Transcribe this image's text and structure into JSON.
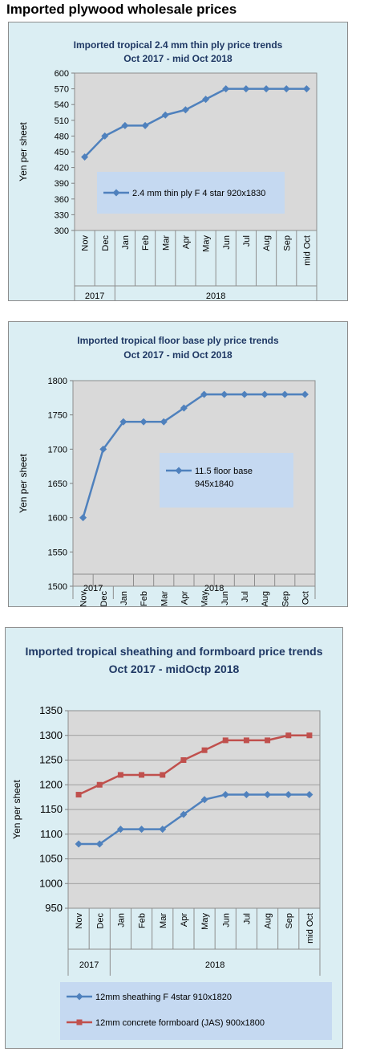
{
  "page": {
    "title": "Imported plywood wholesale prices"
  },
  "colors": {
    "panel_bg": "#dbeef3",
    "plot_bg": "#d9d9d9",
    "legend_bg": "#c5d9f1",
    "blue_series": "#4f81bd",
    "red_series": "#c0504d",
    "title_text": "#1f3864"
  },
  "chart_data": [
    {
      "type": "line",
      "title": "Imported tropical 2.4 mm thin ply price trends",
      "subtitle": "Oct 2017 -  mid  Oct 2018",
      "ylabel": "Yen per sheet",
      "xlabel": "",
      "categories": [
        "Nov",
        "Dec",
        "Jan",
        "Feb",
        "Mar",
        "Apr",
        "May",
        "Jun",
        "Jul",
        "Aug",
        "Sep",
        "mid Oct"
      ],
      "year_groups": [
        {
          "label": "2017",
          "span": 2
        },
        {
          "label": "2018",
          "span": 10
        }
      ],
      "ylim": [
        300,
        600
      ],
      "yticks": [
        300,
        330,
        360,
        390,
        420,
        450,
        480,
        510,
        540,
        570,
        600
      ],
      "grid": false,
      "legend_position": "inside-bottom",
      "series": [
        {
          "name": "2.4 mm thin ply F 4 star 920x1830",
          "color": "#4f81bd",
          "marker": "diamond",
          "values": [
            440,
            480,
            500,
            500,
            520,
            530,
            550,
            570,
            570,
            570,
            570,
            570
          ]
        }
      ]
    },
    {
      "type": "line",
      "title": "Imported tropical floor base ply price trends",
      "subtitle": "Oct 2017 - mid  Oct 2018",
      "ylabel": "Yen per sheet",
      "xlabel": "",
      "categories": [
        "Nov",
        "Dec",
        "Jan",
        "Feb",
        "Mar",
        "Apr",
        "May",
        "Jun",
        "Jul",
        "Aug",
        "Sep",
        "mid Oct"
      ],
      "year_groups": [
        {
          "label": "2017",
          "span": 2
        },
        {
          "label": "2018",
          "span": 10
        }
      ],
      "ylim": [
        1500,
        1800
      ],
      "yticks": [
        1500,
        1550,
        1600,
        1650,
        1700,
        1750,
        1800
      ],
      "grid": false,
      "legend_position": "inside-bottom-right",
      "series": [
        {
          "name": "11.5 floor base 945x1840",
          "color": "#4f81bd",
          "marker": "diamond",
          "values": [
            1600,
            1700,
            1740,
            1740,
            1740,
            1760,
            1780,
            1780,
            1780,
            1780,
            1780,
            1780
          ]
        }
      ]
    },
    {
      "type": "line",
      "title": "Imported tropical sheathing and formboard price trends",
      "subtitle": "Oct 2017 - midOctp 2018",
      "ylabel": "Yen per sheet",
      "xlabel": "",
      "categories": [
        "Nov",
        "Dec",
        "Jan",
        "Feb",
        "Mar",
        "Apr",
        "May",
        "Jun",
        "Jul",
        "Aug",
        "Sep",
        "mid Oct"
      ],
      "year_groups": [
        {
          "label": "2017",
          "span": 2
        },
        {
          "label": "2018",
          "span": 10
        }
      ],
      "ylim": [
        950,
        1350
      ],
      "yticks": [
        950,
        1000,
        1050,
        1100,
        1150,
        1200,
        1250,
        1300,
        1350
      ],
      "grid": true,
      "legend_position": "bottom",
      "series": [
        {
          "name": "12mm sheathing F 4star 910x1820",
          "color": "#4f81bd",
          "marker": "diamond",
          "values": [
            1080,
            1080,
            1110,
            1110,
            1110,
            1140,
            1170,
            1180,
            1180,
            1180,
            1180,
            1180
          ]
        },
        {
          "name": "12mm concrete formboard (JAS) 900x1800",
          "color": "#c0504d",
          "marker": "square",
          "values": [
            1180,
            1200,
            1220,
            1220,
            1220,
            1250,
            1270,
            1290,
            1290,
            1290,
            1300,
            1300
          ]
        }
      ]
    }
  ]
}
